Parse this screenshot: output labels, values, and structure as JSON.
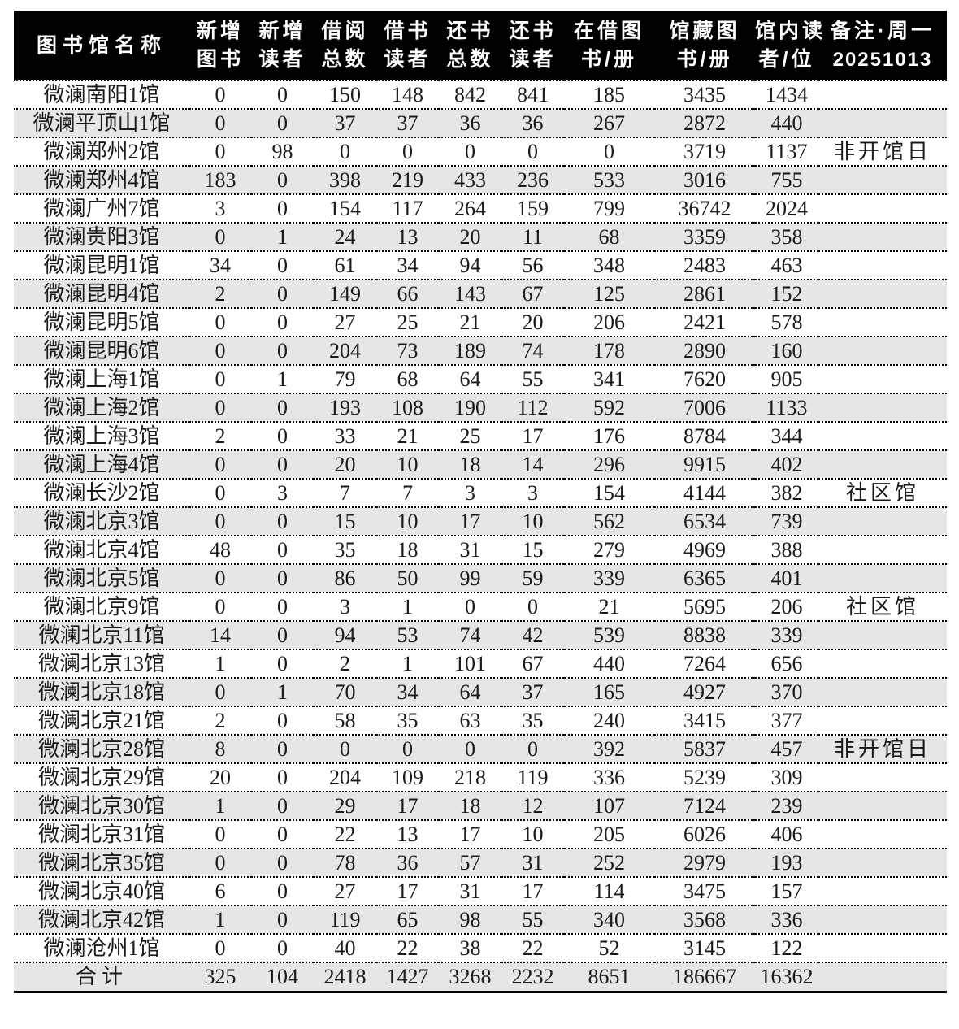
{
  "colors": {
    "header_bg": "#000000",
    "header_text": "#ffffff",
    "row_alt_bg": "#e6e6e6",
    "border": "#000000"
  },
  "table": {
    "columns": [
      {
        "id": "library-name",
        "line1": "图书馆名称",
        "line2": ""
      },
      {
        "id": "new-books",
        "line1": "新增",
        "line2": "图书"
      },
      {
        "id": "new-readers",
        "line1": "新增",
        "line2": "读者"
      },
      {
        "id": "borrow-total",
        "line1": "借阅",
        "line2": "总数"
      },
      {
        "id": "borrow-readers",
        "line1": "借书",
        "line2": "读者"
      },
      {
        "id": "return-total",
        "line1": "还书",
        "line2": "总数"
      },
      {
        "id": "return-readers",
        "line1": "还书",
        "line2": "读者"
      },
      {
        "id": "books-on-loan",
        "line1": "在借图",
        "line2": "书/册"
      },
      {
        "id": "collection-books",
        "line1": "馆藏图",
        "line2": "书/册"
      },
      {
        "id": "in-library-readers",
        "line1": "馆内读",
        "line2": "者/位"
      },
      {
        "id": "remark",
        "line1": "备注·周一",
        "line2": "20251013"
      }
    ],
    "rows": [
      {
        "name": "微澜南阳1馆",
        "values": [
          0,
          0,
          150,
          148,
          842,
          841,
          185,
          3435,
          1434
        ],
        "remark": ""
      },
      {
        "name": "微澜平顶山1馆",
        "values": [
          0,
          0,
          37,
          37,
          36,
          36,
          267,
          2872,
          440
        ],
        "remark": ""
      },
      {
        "name": "微澜郑州2馆",
        "values": [
          0,
          98,
          0,
          0,
          0,
          0,
          0,
          3719,
          1137
        ],
        "remark": "非开馆日"
      },
      {
        "name": "微澜郑州4馆",
        "values": [
          183,
          0,
          398,
          219,
          433,
          236,
          533,
          3016,
          755
        ],
        "remark": ""
      },
      {
        "name": "微澜广州7馆",
        "values": [
          3,
          0,
          154,
          117,
          264,
          159,
          799,
          36742,
          2024
        ],
        "remark": ""
      },
      {
        "name": "微澜贵阳3馆",
        "values": [
          0,
          1,
          24,
          13,
          20,
          11,
          68,
          3359,
          358
        ],
        "remark": ""
      },
      {
        "name": "微澜昆明1馆",
        "values": [
          34,
          0,
          61,
          34,
          94,
          56,
          348,
          2483,
          463
        ],
        "remark": ""
      },
      {
        "name": "微澜昆明4馆",
        "values": [
          2,
          0,
          149,
          66,
          143,
          67,
          125,
          2861,
          152
        ],
        "remark": ""
      },
      {
        "name": "微澜昆明5馆",
        "values": [
          0,
          0,
          27,
          25,
          21,
          20,
          206,
          2421,
          578
        ],
        "remark": ""
      },
      {
        "name": "微澜昆明6馆",
        "values": [
          0,
          0,
          204,
          73,
          189,
          74,
          178,
          2890,
          160
        ],
        "remark": ""
      },
      {
        "name": "微澜上海1馆",
        "values": [
          0,
          1,
          79,
          68,
          64,
          55,
          341,
          7620,
          905
        ],
        "remark": ""
      },
      {
        "name": "微澜上海2馆",
        "values": [
          0,
          0,
          193,
          108,
          190,
          112,
          592,
          7006,
          1133
        ],
        "remark": ""
      },
      {
        "name": "微澜上海3馆",
        "values": [
          2,
          0,
          33,
          21,
          25,
          17,
          176,
          8784,
          344
        ],
        "remark": ""
      },
      {
        "name": "微澜上海4馆",
        "values": [
          0,
          0,
          20,
          10,
          18,
          14,
          296,
          9915,
          402
        ],
        "remark": ""
      },
      {
        "name": "微澜长沙2馆",
        "values": [
          0,
          3,
          7,
          7,
          3,
          3,
          154,
          4144,
          382
        ],
        "remark": "社区馆"
      },
      {
        "name": "微澜北京3馆",
        "values": [
          0,
          0,
          15,
          10,
          17,
          10,
          562,
          6534,
          739
        ],
        "remark": ""
      },
      {
        "name": "微澜北京4馆",
        "values": [
          48,
          0,
          35,
          18,
          31,
          15,
          279,
          4969,
          388
        ],
        "remark": ""
      },
      {
        "name": "微澜北京5馆",
        "values": [
          0,
          0,
          86,
          50,
          99,
          59,
          339,
          6365,
          401
        ],
        "remark": ""
      },
      {
        "name": "微澜北京9馆",
        "values": [
          0,
          0,
          3,
          1,
          0,
          0,
          21,
          5695,
          206
        ],
        "remark": "社区馆"
      },
      {
        "name": "微澜北京11馆",
        "values": [
          14,
          0,
          94,
          53,
          74,
          42,
          539,
          8838,
          339
        ],
        "remark": ""
      },
      {
        "name": "微澜北京13馆",
        "values": [
          1,
          0,
          2,
          1,
          101,
          67,
          440,
          7264,
          656
        ],
        "remark": ""
      },
      {
        "name": "微澜北京18馆",
        "values": [
          0,
          1,
          70,
          34,
          64,
          37,
          165,
          4927,
          370
        ],
        "remark": ""
      },
      {
        "name": "微澜北京21馆",
        "values": [
          2,
          0,
          58,
          35,
          63,
          35,
          240,
          3415,
          377
        ],
        "remark": ""
      },
      {
        "name": "微澜北京28馆",
        "values": [
          8,
          0,
          0,
          0,
          0,
          0,
          392,
          5837,
          457
        ],
        "remark": "非开馆日"
      },
      {
        "name": "微澜北京29馆",
        "values": [
          20,
          0,
          204,
          109,
          218,
          119,
          336,
          5239,
          309
        ],
        "remark": ""
      },
      {
        "name": "微澜北京30馆",
        "values": [
          1,
          0,
          29,
          17,
          18,
          12,
          107,
          7124,
          239
        ],
        "remark": ""
      },
      {
        "name": "微澜北京31馆",
        "values": [
          0,
          0,
          22,
          13,
          17,
          10,
          205,
          6026,
          406
        ],
        "remark": ""
      },
      {
        "name": "微澜北京35馆",
        "values": [
          0,
          0,
          78,
          36,
          57,
          31,
          252,
          2979,
          193
        ],
        "remark": ""
      },
      {
        "name": "微澜北京40馆",
        "values": [
          6,
          0,
          27,
          17,
          31,
          17,
          114,
          3475,
          157
        ],
        "remark": ""
      },
      {
        "name": "微澜北京42馆",
        "values": [
          1,
          0,
          119,
          65,
          98,
          55,
          340,
          3568,
          336
        ],
        "remark": ""
      },
      {
        "name": "微澜沧州1馆",
        "values": [
          0,
          0,
          40,
          22,
          38,
          22,
          52,
          3145,
          122
        ],
        "remark": ""
      }
    ],
    "total": {
      "name": "合计",
      "values": [
        325,
        104,
        2418,
        1427,
        3268,
        2232,
        8651,
        186667,
        16362
      ],
      "remark": ""
    }
  }
}
